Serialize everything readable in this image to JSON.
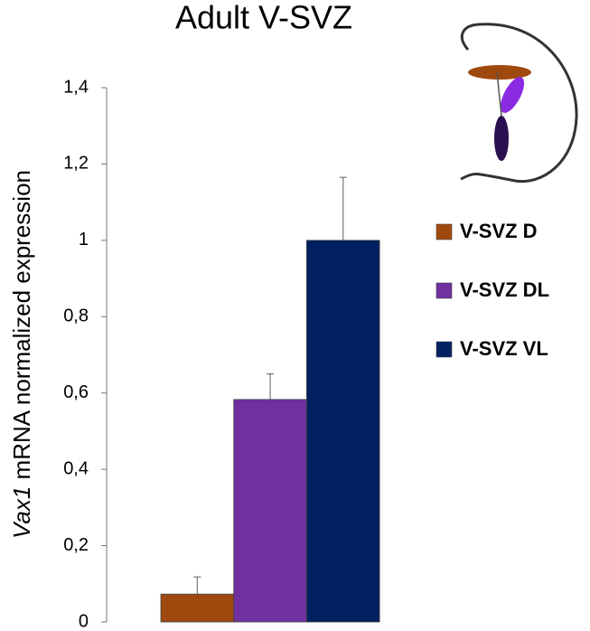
{
  "chart_data": {
    "type": "bar",
    "title": "Adult V-SVZ",
    "y_label": [
      "Vax1",
      "mRNA normalized expression"
    ],
    "categories": [
      "V-SVZ D",
      "V-SVZ DL",
      "V-SVZ VL"
    ],
    "values": [
      0.073,
      0.583,
      1.0
    ],
    "errors": [
      0.045,
      0.067,
      0.165
    ],
    "colors": [
      "#a0490f",
      "#7030a0",
      "#002060"
    ],
    "ylim": [
      0,
      1.4
    ],
    "yticks": [
      0,
      {
        "value": 0.2,
        "label": "0,2"
      },
      {
        "value": 0.4,
        "label": "0,4"
      },
      {
        "value": 0.6,
        "label": "0,6"
      },
      {
        "value": 0.8,
        "label": "0,8"
      },
      1,
      {
        "value": 1.2,
        "label": "1,2"
      },
      {
        "value": 1.4,
        "label": "1,4"
      }
    ],
    "grid": false
  }
}
